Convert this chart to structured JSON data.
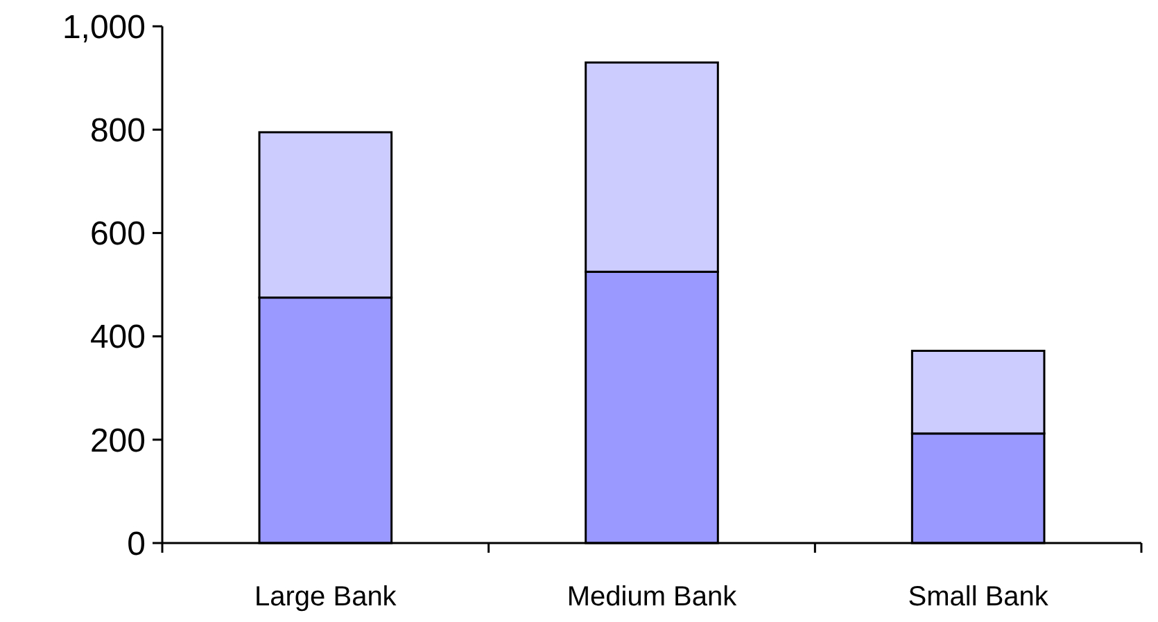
{
  "chart_data": {
    "type": "bar",
    "stacked": true,
    "categories": [
      "Large Bank",
      "Medium Bank",
      "Small Bank"
    ],
    "series": [
      {
        "color": "#9999ff",
        "values": [
          475,
          525,
          212
        ]
      },
      {
        "color": "#ccccff",
        "values": [
          320,
          405,
          160
        ]
      }
    ],
    "ylim": [
      0,
      1000
    ],
    "yticks": [
      0,
      200,
      400,
      600,
      800,
      {
        "value": 1000,
        "label": "1,000"
      }
    ],
    "grid": false
  }
}
